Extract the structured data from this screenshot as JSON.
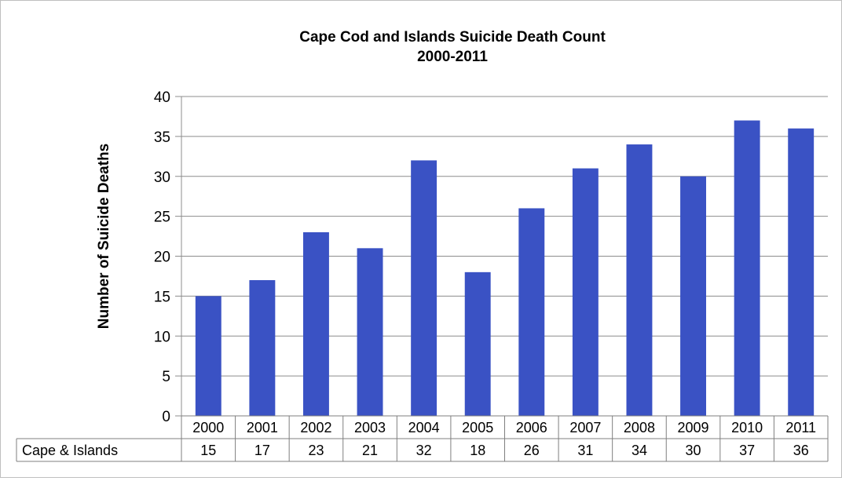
{
  "chart_data": {
    "type": "bar",
    "title": [
      "Cape Cod and Islands Suicide Death Count",
      "2000-2011"
    ],
    "xlabel": "",
    "ylabel": "Number of Suicide Deaths",
    "ylim": [
      0,
      40
    ],
    "yticks": [
      0,
      5,
      10,
      15,
      20,
      25,
      30,
      35,
      40
    ],
    "grid": true,
    "categories": [
      "2000",
      "2001",
      "2002",
      "2003",
      "2004",
      "2005",
      "2006",
      "2007",
      "2008",
      "2009",
      "2010",
      "2011"
    ],
    "series": [
      {
        "name": "Cape & Islands",
        "values": [
          15,
          17,
          23,
          21,
          32,
          18,
          26,
          31,
          34,
          30,
          37,
          36
        ],
        "color": "#3a52c4"
      }
    ],
    "data_table": true
  }
}
